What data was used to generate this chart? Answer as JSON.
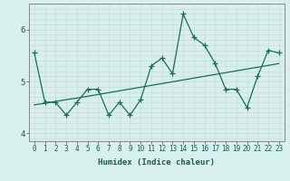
{
  "x": [
    0,
    1,
    2,
    3,
    4,
    5,
    6,
    7,
    8,
    9,
    10,
    11,
    12,
    13,
    14,
    15,
    16,
    17,
    18,
    19,
    20,
    21,
    22,
    23
  ],
  "y_main": [
    5.55,
    4.6,
    4.6,
    4.35,
    4.6,
    4.85,
    4.85,
    4.35,
    4.6,
    4.35,
    4.65,
    5.3,
    5.45,
    5.15,
    6.3,
    5.85,
    5.7,
    5.35,
    4.85,
    4.85,
    4.5,
    5.1,
    5.6,
    5.55
  ],
  "y_trend": [
    4.55,
    4.58,
    4.615,
    4.65,
    4.68,
    4.715,
    4.75,
    4.785,
    4.82,
    4.855,
    4.89,
    4.925,
    4.96,
    4.995,
    5.03,
    5.065,
    5.1,
    5.135,
    5.17,
    5.205,
    5.24,
    5.275,
    5.31,
    5.345
  ],
  "line_color": "#1a6b5a",
  "bg_color": "#d8f0ed",
  "grid_color_major": "#c9ddd9",
  "grid_color_minor": "#c9ddd9",
  "xlabel": "Humidex (Indice chaleur)",
  "ylim": [
    3.85,
    6.5
  ],
  "xlim": [
    -0.5,
    23.5
  ],
  "yticks": [
    4,
    5,
    6
  ],
  "xticks": [
    0,
    1,
    2,
    3,
    4,
    5,
    6,
    7,
    8,
    9,
    10,
    11,
    12,
    13,
    14,
    15,
    16,
    17,
    18,
    19,
    20,
    21,
    22,
    23
  ],
  "marker_size": 2.5,
  "line_width": 0.9,
  "tick_fontsize": 5.5,
  "xlabel_fontsize": 6.5
}
